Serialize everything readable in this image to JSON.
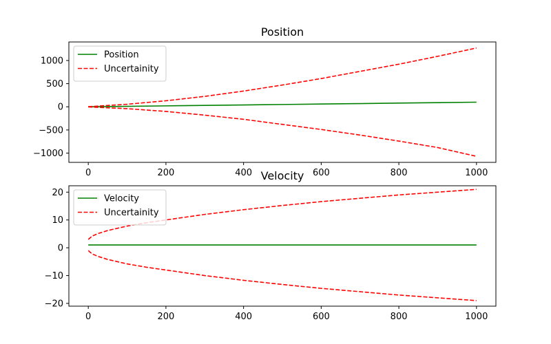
{
  "colors": {
    "line": "#008000",
    "uncertainty": "#ff0000"
  },
  "chart_data": [
    {
      "type": "line",
      "title": "Position",
      "xlabel": "",
      "ylabel": "",
      "xlim": [
        -50,
        1050
      ],
      "ylim": [
        -1200,
        1400
      ],
      "xticks": [
        0,
        200,
        400,
        600,
        800,
        1000
      ],
      "yticks": [
        -1000,
        -500,
        0,
        500,
        1000
      ],
      "grid": false,
      "legend_position": "top-left",
      "series": [
        {
          "name": "Position",
          "style": "solid",
          "color": "#008000",
          "x": [
            0,
            100,
            200,
            300,
            400,
            500,
            600,
            700,
            800,
            900,
            1000
          ],
          "y": [
            0,
            10,
            20,
            30,
            40,
            50,
            60,
            70,
            80,
            90,
            100
          ]
        },
        {
          "name": "Uncertainity",
          "style": "dashed",
          "color": "#ff0000",
          "x": [
            0,
            100,
            200,
            300,
            400,
            500,
            600,
            700,
            800,
            900,
            1000
          ],
          "y": [
            3,
            55,
            130,
            225,
            340,
            470,
            610,
            765,
            920,
            1090,
            1270
          ]
        },
        {
          "name": "",
          "style": "dashed",
          "color": "#ff0000",
          "x": [
            0,
            100,
            200,
            300,
            400,
            500,
            600,
            700,
            800,
            900,
            1000
          ],
          "y": [
            -3,
            -40,
            -100,
            -180,
            -270,
            -380,
            -490,
            -610,
            -740,
            -880,
            -1070
          ]
        }
      ]
    },
    {
      "type": "line",
      "title": "Velocity",
      "xlabel": "",
      "ylabel": "",
      "xlim": [
        -50,
        1050
      ],
      "ylim": [
        -21,
        22.3
      ],
      "xticks": [
        0,
        200,
        400,
        600,
        800,
        1000
      ],
      "yticks": [
        -20,
        -10,
        0,
        10,
        20
      ],
      "grid": false,
      "legend_position": "top-left",
      "series": [
        {
          "name": "Velocity",
          "style": "solid",
          "color": "#008000",
          "x": [
            0,
            1000
          ],
          "y": [
            1,
            1
          ]
        },
        {
          "name": "Uncertainity",
          "style": "dashed",
          "color": "#ff0000",
          "x": [
            0,
            10,
            25,
            50,
            100,
            150,
            200,
            300,
            400,
            500,
            600,
            700,
            800,
            900,
            1000
          ],
          "y": [
            3,
            4.2,
            5.1,
            6.2,
            7.8,
            9.0,
            10.0,
            12.0,
            13.7,
            15.2,
            16.6,
            17.8,
            19.0,
            20.0,
            21.0
          ]
        },
        {
          "name": "",
          "style": "dashed",
          "color": "#ff0000",
          "x": [
            0,
            10,
            25,
            50,
            100,
            150,
            200,
            300,
            400,
            500,
            600,
            700,
            800,
            900,
            1000
          ],
          "y": [
            -1,
            -2.2,
            -3.1,
            -4.2,
            -5.8,
            -7.0,
            -8.0,
            -10.0,
            -11.7,
            -13.2,
            -14.6,
            -15.8,
            -17.0,
            -18.0,
            -19.0
          ]
        }
      ]
    }
  ]
}
